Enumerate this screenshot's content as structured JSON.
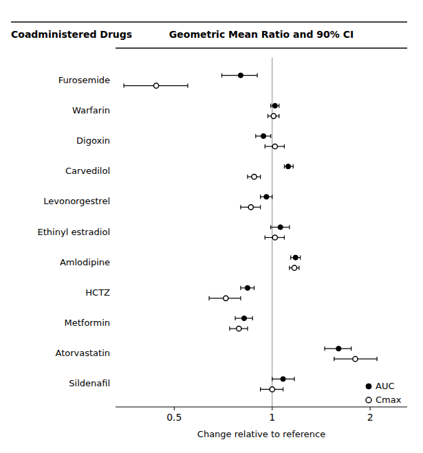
{
  "chart_data": {
    "type": "forest",
    "orientation": "horizontal",
    "title": "Geometric Mean Ratio and 90% CI",
    "ylabel": "Coadministered Drugs",
    "xlabel": "Change relative to reference",
    "categories": [
      "Furosemide",
      "Warfarin",
      "Digoxin",
      "Carvedilol",
      "Levonorgestrel",
      "Ethinyl estradiol",
      "Amlodipine",
      "HCTZ",
      "Metformin",
      "Atorvastatin",
      "Sildenafil"
    ],
    "series": [
      {
        "name": "AUC",
        "color": "#000000",
        "marker": "circle",
        "values": [
          0.8,
          1.02,
          0.94,
          1.12,
          0.96,
          1.06,
          1.18,
          0.84,
          0.82,
          1.6,
          1.08
        ],
        "lo": [
          0.7,
          0.99,
          0.89,
          1.09,
          0.92,
          0.99,
          1.14,
          0.8,
          0.77,
          1.45,
          1.0
        ],
        "hi": [
          0.9,
          1.05,
          0.99,
          1.16,
          1.0,
          1.13,
          1.22,
          0.88,
          0.87,
          1.75,
          1.17
        ]
      },
      {
        "name": "Cmax",
        "color": "#000000",
        "marker": "open-circle",
        "values": [
          0.44,
          1.01,
          1.02,
          0.88,
          0.86,
          1.02,
          1.17,
          0.72,
          0.79,
          1.8,
          1.0
        ],
        "lo": [
          0.35,
          0.97,
          0.95,
          0.84,
          0.8,
          0.95,
          1.13,
          0.64,
          0.74,
          1.55,
          0.92
        ],
        "hi": [
          0.55,
          1.05,
          1.09,
          0.92,
          0.92,
          1.09,
          1.21,
          0.8,
          0.84,
          2.1,
          1.08
        ]
      }
    ],
    "reference_line": {
      "value": 1.0,
      "color": "#888888"
    },
    "log": "x",
    "xlim": [
      0.33,
      2.6
    ],
    "xticks": [
      0.5,
      1,
      2
    ],
    "grid": false,
    "legend": "lower right"
  }
}
